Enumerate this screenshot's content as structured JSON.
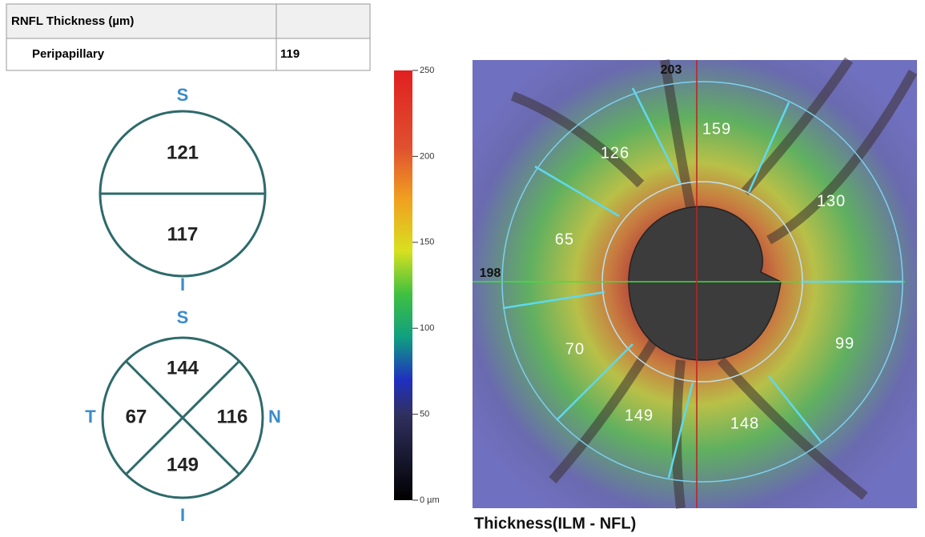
{
  "table": {
    "header": [
      "RNFL Thickness (µm)",
      ""
    ],
    "rows": [
      [
        "Peripapillary",
        "119"
      ]
    ]
  },
  "hemifield_chart": {
    "top_label": "S",
    "bottom_label": "I",
    "superior": "121",
    "inferior": "117"
  },
  "quadrant_chart": {
    "top_label": "S",
    "bottom_label": "I",
    "left_label": "T",
    "right_label": "N",
    "superior": "144",
    "temporal": "67",
    "nasal": "116",
    "inferior": "149"
  },
  "colorbar": {
    "lim": [
      0,
      250
    ],
    "ticks": [
      250,
      200,
      150,
      100,
      50,
      {
        "value": 0,
        "label": "0 µm"
      }
    ]
  },
  "thickness_map": {
    "caption": "Thickness(ILM - NFL)",
    "top_value": "203",
    "left_value": "198",
    "sectors": [
      "159",
      "126",
      "130",
      "65",
      "70",
      "99",
      "149",
      "148"
    ]
  }
}
